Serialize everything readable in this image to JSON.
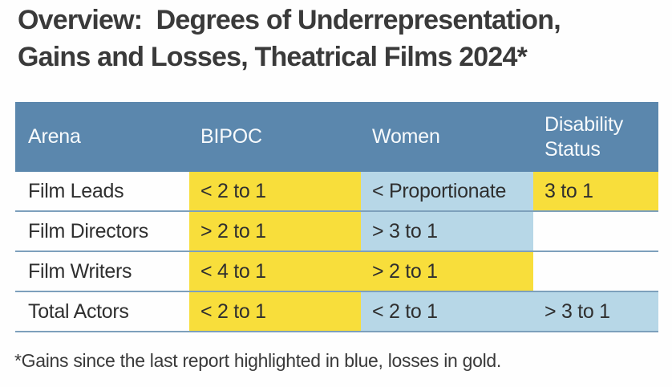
{
  "title": {
    "line1": "Overview:  Degrees of Underrepresentation,",
    "line2": "Gains and Losses, Theatrical Films 2024*"
  },
  "chart_data": {
    "type": "table",
    "title": "Overview: Degrees of Underrepresentation, Gains and Losses, Theatrical Films 2024*",
    "columns": [
      "Arena",
      "BIPOC",
      "Women",
      "Disability Status"
    ],
    "rows": [
      {
        "arena": "Film Leads",
        "bipoc": {
          "value": "< 2 to 1",
          "highlight": "gold"
        },
        "women": {
          "value": "< Proportionate",
          "highlight": "blue"
        },
        "disability": {
          "value": "3 to 1",
          "highlight": "gold"
        }
      },
      {
        "arena": "Film Directors",
        "bipoc": {
          "value": "> 2 to 1",
          "highlight": "gold"
        },
        "women": {
          "value": "> 3 to 1",
          "highlight": "blue"
        },
        "disability": {
          "value": "",
          "highlight": "none"
        }
      },
      {
        "arena": "Film Writers",
        "bipoc": {
          "value": "< 4 to 1",
          "highlight": "gold"
        },
        "women": {
          "value": "> 2 to 1",
          "highlight": "gold"
        },
        "disability": {
          "value": "",
          "highlight": "none"
        }
      },
      {
        "arena": "Total Actors",
        "bipoc": {
          "value": "< 2 to 1",
          "highlight": "gold"
        },
        "women": {
          "value": "< 2 to 1",
          "highlight": "blue"
        },
        "disability": {
          "value": "> 3 to 1",
          "highlight": "blue"
        }
      }
    ],
    "highlight_legend": {
      "blue": "gains since the last report",
      "gold": "losses since the last report"
    }
  },
  "footnote": "*Gains since the last report highlighted in blue, losses in gold.",
  "colors": {
    "header-bg": "#5B87AD",
    "highlight-gold": "#F8DE3B",
    "highlight-blue": "#B7D7E7",
    "separator": "#7DA0BC",
    "title-text": "#3A3A3A",
    "header-text": "#F7FAFC",
    "cell-text": "#2F2F2F"
  }
}
